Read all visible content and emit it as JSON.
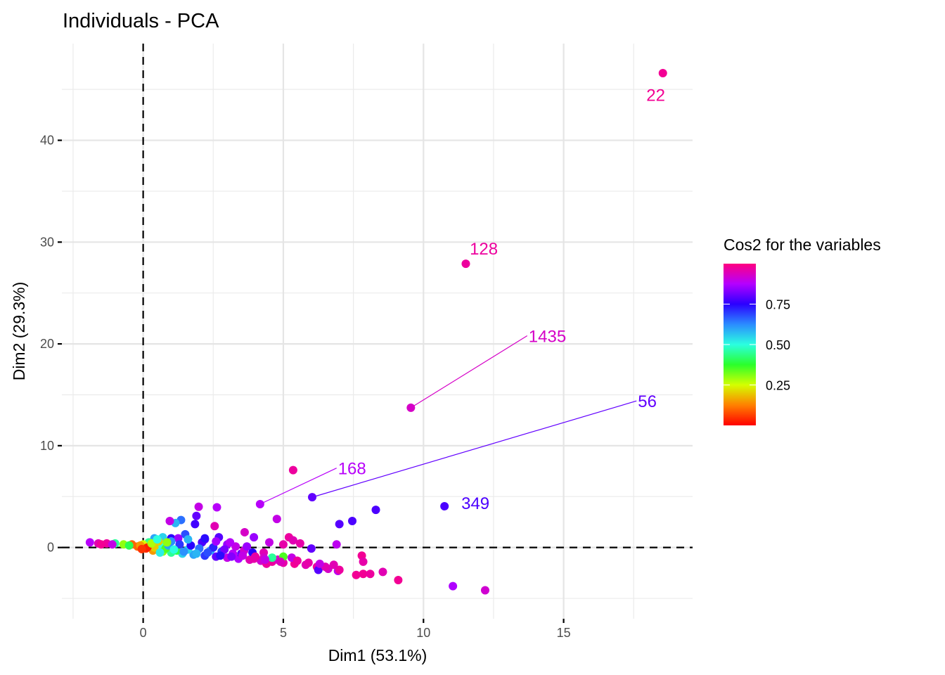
{
  "chart_data": {
    "type": "scatter",
    "title": "Individuals - PCA",
    "xlabel": "Dim1 (53.1%)",
    "ylabel": "Dim2 (29.3%)",
    "xlim": [
      -2.9,
      19.6
    ],
    "ylim": [
      -7,
      49.5
    ],
    "x_ticks": [
      0,
      5,
      10,
      15
    ],
    "y_ticks": [
      0,
      10,
      20,
      30,
      40
    ],
    "x_minor": [
      -2.5,
      2.5,
      7.5,
      12.5,
      17.5
    ],
    "y_minor": [
      -5,
      5,
      15,
      25,
      35,
      45
    ],
    "grid": true,
    "reference_lines": {
      "x": 0,
      "y": 0,
      "style": "dashed"
    },
    "legend": {
      "title": "Cos2 for the variables",
      "type": "colorbar",
      "position": "right",
      "range": [
        0,
        1
      ],
      "ticks": [
        0.25,
        0.5,
        0.75
      ],
      "tick_labels": [
        "0.25",
        "0.50",
        "0.75"
      ],
      "colors": [
        "#ff0000",
        "#ff8000",
        "#d4ff00",
        "#2bff2b",
        "#2bffe0",
        "#2b8cff",
        "#2b00ff",
        "#b400ff",
        "#ff0080"
      ]
    },
    "labeled_points": [
      {
        "label": "22",
        "x": 18.54,
        "y": 46.6,
        "cos2": 0.98,
        "label_x": 17.9,
        "label_y": 44.5,
        "leader": false
      },
      {
        "label": "128",
        "x": 11.51,
        "y": 27.87,
        "cos2": 0.97,
        "label_x": 11.6,
        "label_y": 29.4,
        "leader": false
      },
      {
        "label": "1435",
        "x": 9.55,
        "y": 13.73,
        "cos2": 0.93,
        "label_x": 13.7,
        "label_y": 20.8,
        "leader": true
      },
      {
        "label": "56",
        "x": 6.03,
        "y": 4.94,
        "cos2": 0.8,
        "label_x": 17.6,
        "label_y": 14.4,
        "leader": true
      },
      {
        "label": "168",
        "x": 4.17,
        "y": 4.26,
        "cos2": 0.88,
        "label_x": 6.9,
        "label_y": 7.8,
        "leader": true
      },
      {
        "label": "349",
        "x": 10.75,
        "y": 4.05,
        "cos2": 0.78,
        "label_x": 11.3,
        "label_y": 4.4,
        "leader": false
      }
    ],
    "points": [
      [
        5.35,
        7.6,
        0.97
      ],
      [
        2.63,
        3.95,
        0.88
      ],
      [
        1.98,
        4.0,
        0.9
      ],
      [
        4.77,
        2.8,
        0.9
      ],
      [
        8.3,
        3.7,
        0.78
      ],
      [
        7.46,
        2.6,
        0.78
      ],
      [
        7.0,
        2.3,
        0.79
      ],
      [
        1.35,
        2.7,
        0.65
      ],
      [
        1.15,
        2.4,
        0.58
      ],
      [
        0.95,
        2.6,
        0.9
      ],
      [
        1.9,
        3.1,
        0.8
      ],
      [
        1.85,
        2.3,
        0.77
      ],
      [
        2.55,
        2.1,
        0.95
      ],
      [
        3.62,
        1.5,
        0.93
      ],
      [
        3.95,
        1.0,
        0.85
      ],
      [
        5.2,
        1.0,
        0.97
      ],
      [
        5.35,
        0.7,
        0.95
      ],
      [
        5.6,
        0.4,
        0.96
      ],
      [
        6.9,
        0.3,
        0.89
      ],
      [
        2.7,
        1.0,
        0.79
      ],
      [
        3.0,
        0.3,
        0.85
      ],
      [
        3.3,
        0.1,
        0.9
      ],
      [
        1.0,
        0.9,
        0.75
      ],
      [
        0.7,
        1.0,
        0.55
      ],
      [
        0.4,
        0.9,
        0.6
      ],
      [
        1.5,
        1.3,
        0.68
      ],
      [
        1.25,
        0.9,
        0.85
      ],
      [
        2.2,
        0.8,
        0.8
      ],
      [
        0.2,
        0.5,
        0.45
      ],
      [
        0.6,
        0.3,
        0.5
      ],
      [
        0.0,
        0.3,
        0.25
      ],
      [
        -0.2,
        0.1,
        0.1
      ],
      [
        0.1,
        -0.1,
        0.05
      ],
      [
        0.35,
        -0.3,
        0.15
      ],
      [
        0.7,
        -0.4,
        0.3
      ],
      [
        1.0,
        -0.5,
        0.45
      ],
      [
        1.4,
        -0.6,
        0.55
      ],
      [
        1.8,
        -0.7,
        0.6
      ],
      [
        2.2,
        -0.8,
        0.7
      ],
      [
        2.6,
        -0.9,
        0.8
      ],
      [
        3.0,
        -1.0,
        0.9
      ],
      [
        3.4,
        -1.1,
        0.87
      ],
      [
        3.8,
        -1.2,
        0.95
      ],
      [
        4.2,
        -1.3,
        0.92
      ],
      [
        4.6,
        -1.4,
        0.97
      ],
      [
        5.0,
        -1.5,
        0.96
      ],
      [
        5.4,
        -1.6,
        0.98
      ],
      [
        5.8,
        -1.7,
        0.95
      ],
      [
        6.2,
        -1.9,
        0.97
      ],
      [
        6.6,
        -2.1,
        0.93
      ],
      [
        6.95,
        -2.3,
        0.89
      ],
      [
        6.25,
        -2.2,
        0.79
      ],
      [
        6.5,
        -1.9,
        0.95
      ],
      [
        7.0,
        -2.2,
        0.97
      ],
      [
        7.6,
        -2.7,
        0.98
      ],
      [
        7.85,
        -2.6,
        0.98
      ],
      [
        8.1,
        -2.6,
        0.97
      ],
      [
        8.55,
        -2.4,
        0.95
      ],
      [
        9.1,
        -3.2,
        0.98
      ],
      [
        11.05,
        -3.8,
        0.87
      ],
      [
        12.2,
        -4.2,
        0.92
      ],
      [
        7.8,
        -0.8,
        0.98
      ],
      [
        7.85,
        -1.4,
        0.96
      ],
      [
        6.8,
        -1.7,
        0.95
      ],
      [
        4.4,
        -1.6,
        0.97
      ],
      [
        4.8,
        -1.2,
        0.93
      ],
      [
        5.3,
        -1.0,
        0.9
      ],
      [
        3.5,
        -0.6,
        0.8
      ],
      [
        3.9,
        -0.5,
        0.75
      ],
      [
        4.3,
        -0.5,
        0.95
      ],
      [
        4.6,
        -1.0,
        0.45
      ],
      [
        5.0,
        -0.9,
        0.35
      ],
      [
        2.4,
        -0.3,
        0.6
      ],
      [
        2.8,
        -0.4,
        0.7
      ],
      [
        1.6,
        -0.2,
        0.55
      ],
      [
        1.2,
        -0.3,
        0.4
      ],
      [
        0.8,
        -0.1,
        0.35
      ],
      [
        0.4,
        0.0,
        0.2
      ],
      [
        -0.1,
        0.2,
        0.15
      ],
      [
        -0.4,
        0.3,
        0.1
      ],
      [
        -0.7,
        0.3,
        0.3
      ],
      [
        -1.0,
        0.4,
        0.45
      ],
      [
        -1.3,
        0.4,
        0.97
      ],
      [
        -1.6,
        0.4,
        0.95
      ],
      [
        -1.9,
        0.5,
        0.88
      ],
      [
        -1.5,
        0.3,
        0.98
      ],
      [
        -1.1,
        0.3,
        0.9
      ],
      [
        -0.5,
        0.2,
        0.4
      ],
      [
        0.15,
        0.0,
        0.03
      ],
      [
        -0.05,
        -0.15,
        0.05
      ],
      [
        0.3,
        0.4,
        0.28
      ],
      [
        0.55,
        0.6,
        0.2
      ],
      [
        0.9,
        0.2,
        0.6
      ],
      [
        1.3,
        0.3,
        0.7
      ],
      [
        1.7,
        0.2,
        0.75
      ],
      [
        2.1,
        0.5,
        0.78
      ],
      [
        2.0,
        -0.1,
        0.65
      ],
      [
        2.5,
        0.0,
        0.72
      ],
      [
        2.9,
        -0.2,
        0.82
      ],
      [
        3.2,
        -0.6,
        0.88
      ],
      [
        3.6,
        -0.3,
        0.92
      ],
      [
        4.0,
        -0.9,
        0.97
      ],
      [
        4.3,
        -1.0,
        0.93
      ],
      [
        1.1,
        -0.2,
        0.5
      ],
      [
        0.6,
        -0.5,
        0.52
      ],
      [
        1.45,
        -0.4,
        0.62
      ],
      [
        1.9,
        -0.6,
        0.58
      ],
      [
        2.3,
        -0.5,
        0.68
      ],
      [
        2.75,
        -0.8,
        0.74
      ],
      [
        3.15,
        -0.9,
        0.83
      ],
      [
        3.55,
        -0.8,
        0.9
      ],
      [
        3.95,
        -1.1,
        0.96
      ],
      [
        4.35,
        -1.2,
        0.9
      ],
      [
        4.9,
        -1.4,
        0.94
      ],
      [
        5.5,
        -1.3,
        0.97
      ],
      [
        5.9,
        -1.5,
        0.96
      ],
      [
        6.3,
        -1.6,
        0.9
      ],
      [
        1.0,
        0.6,
        0.62
      ],
      [
        1.6,
        0.8,
        0.58
      ],
      [
        2.2,
        0.9,
        0.74
      ],
      [
        2.6,
        0.6,
        0.86
      ],
      [
        3.1,
        0.5,
        0.88
      ],
      [
        0.5,
        0.8,
        0.5
      ],
      [
        0.85,
        0.5,
        0.3
      ],
      [
        5.0,
        0.3,
        0.96
      ],
      [
        4.5,
        0.5,
        0.9
      ],
      [
        3.7,
        0.1,
        0.85
      ],
      [
        6.0,
        -0.1,
        0.8
      ]
    ]
  }
}
